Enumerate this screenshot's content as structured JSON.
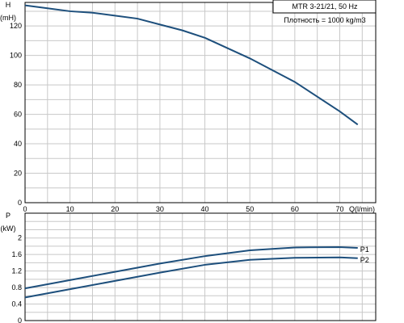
{
  "info_box": {
    "model": "MTR 3-21/21, 50 Hz",
    "density": "Плотность = 1000 kg/m3"
  },
  "chart_data": [
    {
      "type": "line",
      "ylabel_lines": [
        "H",
        "(mH)"
      ],
      "xlabel": "Q(l/min)",
      "xlim": [
        0,
        78
      ],
      "ylim": [
        0,
        136
      ],
      "x_ticks": [
        0,
        10,
        20,
        30,
        40,
        50,
        60,
        70
      ],
      "y_ticks": [
        0,
        20,
        40,
        60,
        80,
        100,
        120
      ],
      "grid": true,
      "series": [
        {
          "name": "",
          "color": "#1d4f7c",
          "x": [
            0,
            5,
            10,
            15,
            20,
            25,
            30,
            35,
            40,
            45,
            50,
            55,
            60,
            65,
            70,
            74
          ],
          "y": [
            134,
            132,
            130,
            129,
            127,
            125,
            121,
            117,
            112,
            105,
            98,
            90,
            82,
            72,
            62,
            53
          ]
        }
      ]
    },
    {
      "type": "line",
      "ylabel_lines": [
        "P",
        "(kW)"
      ],
      "xlim": [
        0,
        78
      ],
      "ylim": [
        0,
        2.6
      ],
      "y_ticks": [
        0,
        0.4,
        0.8,
        1.2,
        1.6,
        2
      ],
      "grid": true,
      "series": [
        {
          "name": "P1",
          "color": "#1d4f7c",
          "x": [
            0,
            10,
            20,
            30,
            40,
            50,
            60,
            70,
            74
          ],
          "y": [
            0.78,
            0.98,
            1.18,
            1.38,
            1.56,
            1.7,
            1.77,
            1.78,
            1.76
          ]
        },
        {
          "name": "P2",
          "color": "#1d4f7c",
          "x": [
            0,
            10,
            20,
            30,
            40,
            50,
            60,
            70,
            74
          ],
          "y": [
            0.56,
            0.76,
            0.96,
            1.16,
            1.35,
            1.47,
            1.52,
            1.53,
            1.51
          ]
        }
      ]
    }
  ]
}
